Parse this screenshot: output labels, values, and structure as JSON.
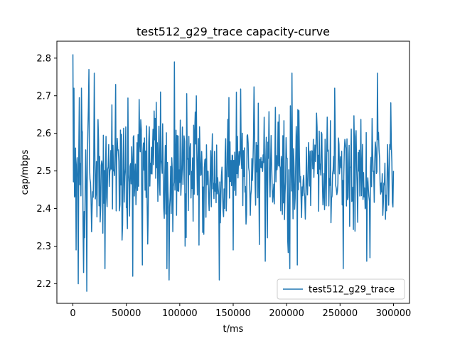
{
  "chart_data": {
    "type": "line",
    "title": "test512_g29_trace capacity-curve",
    "xlabel": "t/ms",
    "ylabel": "cap/mbps",
    "xlim": [
      -15000,
      315000
    ],
    "ylim": [
      2.148,
      2.845
    ],
    "x_ticks": [
      0,
      50000,
      100000,
      150000,
      200000,
      250000,
      300000
    ],
    "x_tick_labels": [
      "0",
      "50000",
      "100000",
      "150000",
      "200000",
      "250000",
      "300000"
    ],
    "y_ticks": [
      2.2,
      2.3,
      2.4,
      2.5,
      2.6,
      2.7,
      2.8
    ],
    "y_tick_labels": [
      "2.2",
      "2.3",
      "2.4",
      "2.5",
      "2.6",
      "2.7",
      "2.8"
    ],
    "grid": false,
    "legend": {
      "position": "lower-right",
      "entries": [
        "test512_g29_trace"
      ]
    },
    "series": [
      {
        "name": "test512_g29_trace",
        "color": "#1f77b4",
        "x_start": 0,
        "x_step": 500,
        "point_count": 601,
        "mean": 2.5,
        "std": 0.085,
        "notable_points": [
          {
            "x": 0,
            "y": 2.81
          },
          {
            "x": 1000,
            "y": 2.72
          },
          {
            "x": 3000,
            "y": 2.29
          },
          {
            "x": 5000,
            "y": 2.2
          },
          {
            "x": 8000,
            "y": 2.72
          },
          {
            "x": 10000,
            "y": 2.23
          },
          {
            "x": 13000,
            "y": 2.18
          },
          {
            "x": 15000,
            "y": 2.77
          },
          {
            "x": 20000,
            "y": 2.76
          },
          {
            "x": 30000,
            "y": 2.24
          },
          {
            "x": 40000,
            "y": 2.73
          },
          {
            "x": 56000,
            "y": 2.22
          },
          {
            "x": 62000,
            "y": 2.69
          },
          {
            "x": 65000,
            "y": 2.25
          },
          {
            "x": 82000,
            "y": 2.71
          },
          {
            "x": 88000,
            "y": 2.24
          },
          {
            "x": 90000,
            "y": 2.21
          },
          {
            "x": 95000,
            "y": 2.79
          },
          {
            "x": 105000,
            "y": 2.3
          },
          {
            "x": 137000,
            "y": 2.21
          },
          {
            "x": 150000,
            "y": 2.29
          },
          {
            "x": 180000,
            "y": 2.26
          },
          {
            "x": 203000,
            "y": 2.24
          },
          {
            "x": 205000,
            "y": 2.76
          },
          {
            "x": 210000,
            "y": 2.25
          },
          {
            "x": 245000,
            "y": 2.72
          },
          {
            "x": 253000,
            "y": 2.24
          },
          {
            "x": 275000,
            "y": 2.26
          },
          {
            "x": 285000,
            "y": 2.76
          },
          {
            "x": 300000,
            "y": 2.5
          }
        ]
      }
    ]
  }
}
